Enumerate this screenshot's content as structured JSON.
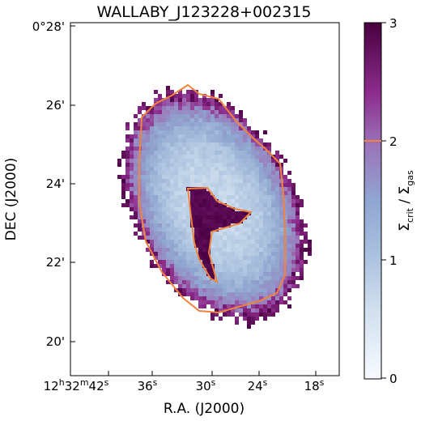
{
  "chart_data": {
    "type": "heatmap",
    "title": "WALLABY_J123228+002315",
    "xlabel": "R.A. (J2000)",
    "ylabel": "DEC (J2000)",
    "x_ticks": [
      {
        "h": "12",
        "hu": "h",
        "m": "32",
        "mu": "m",
        "s": "42",
        "su": "s"
      },
      {
        "s": "36",
        "su": "s"
      },
      {
        "s": "30",
        "su": "s"
      },
      {
        "s": "24",
        "su": "s"
      },
      {
        "s": "18",
        "su": "s"
      }
    ],
    "y_ticks": [
      "20'",
      "22'",
      "24'",
      "26'",
      "0°28'"
    ],
    "colorbar": {
      "label_main": "Σ",
      "label_sub1": "crit",
      "label_sep": " / Σ",
      "label_sub2": "gas",
      "ticks": [
        "0",
        "1",
        "2",
        "3"
      ],
      "range": [
        0,
        3
      ],
      "contour_level": 2,
      "contour_color": "#f0843c",
      "cmap": [
        "#f7fbff",
        "#bcd0e6",
        "#8fa7d0",
        "#9b74b8",
        "#8e2c8c",
        "#4a0042"
      ]
    },
    "map": {
      "center_value": 0.5,
      "edge_value": 2.9,
      "inner_high_region": "central hole with value ~3 (Σcrit/Σgas > 2)"
    }
  }
}
